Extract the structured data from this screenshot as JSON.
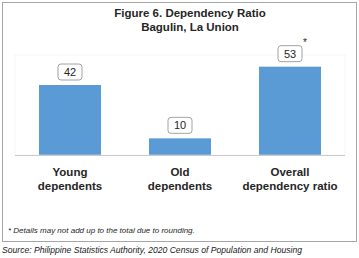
{
  "chart_data": {
    "type": "bar",
    "title": "Figure 6. Dependency Ratio",
    "subtitle": "Bagulin, La Union",
    "categories": [
      "Young dependents",
      "Old dependents",
      "Overall dependency ratio"
    ],
    "values": [
      42,
      10,
      53
    ],
    "value_labels": [
      "42",
      "10",
      "53*"
    ],
    "color": "#5b9bd5",
    "ylim": [
      0,
      60
    ],
    "grid": false,
    "tick_labels": false,
    "data_labels": true,
    "footnote": "* Details may not add up to the total due to rounding.",
    "source": "Source: Philippine Statistics Authority, 2020 Census of Population and Housing"
  }
}
